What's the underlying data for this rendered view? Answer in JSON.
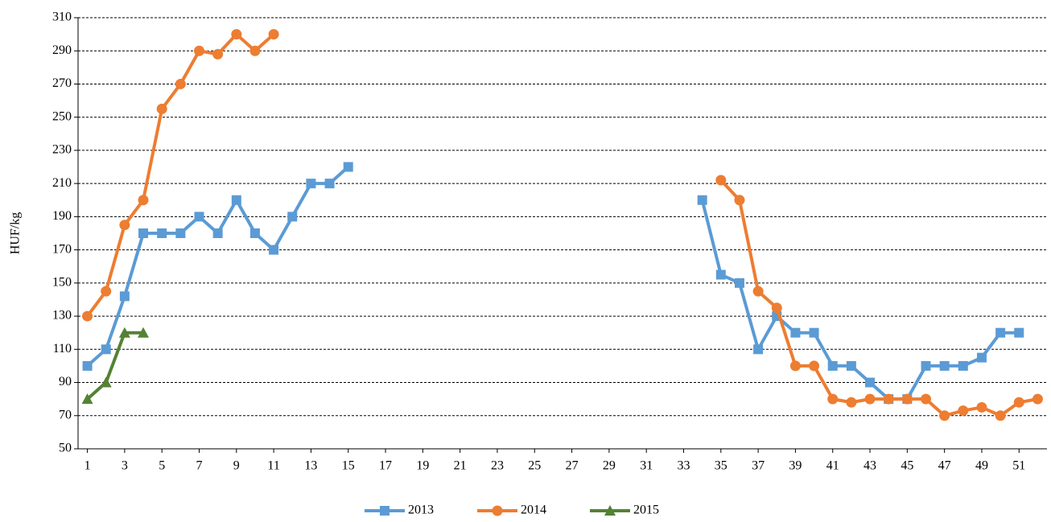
{
  "chart_data": {
    "type": "line",
    "y_label": "HUF/kg",
    "x": [
      1,
      2,
      3,
      4,
      5,
      6,
      7,
      8,
      9,
      10,
      11,
      12,
      13,
      14,
      15,
      16,
      17,
      18,
      19,
      20,
      21,
      22,
      23,
      24,
      25,
      26,
      27,
      28,
      29,
      30,
      31,
      32,
      33,
      34,
      35,
      36,
      37,
      38,
      39,
      40,
      41,
      42,
      43,
      44,
      45,
      46,
      47,
      48,
      49,
      50,
      51,
      52
    ],
    "xlim": [
      0.5,
      52.5
    ],
    "xticks": [
      1,
      3,
      5,
      7,
      9,
      11,
      13,
      15,
      17,
      19,
      21,
      23,
      25,
      27,
      29,
      31,
      33,
      35,
      37,
      39,
      41,
      43,
      45,
      47,
      49,
      51
    ],
    "ylim": [
      50,
      310
    ],
    "yticks": [
      50,
      70,
      90,
      110,
      130,
      150,
      170,
      190,
      210,
      230,
      250,
      270,
      290,
      310
    ],
    "grid": true,
    "legend": "bottom",
    "series": [
      {
        "name": "2013",
        "color": "#5b9bd5",
        "marker": "square",
        "values": [
          100,
          110,
          142,
          180,
          180,
          180,
          190,
          180,
          200,
          180,
          170,
          190,
          210,
          210,
          220,
          null,
          null,
          null,
          null,
          null,
          null,
          null,
          null,
          null,
          null,
          null,
          null,
          null,
          null,
          null,
          null,
          null,
          null,
          200,
          155,
          150,
          110,
          130,
          120,
          120,
          100,
          100,
          90,
          80,
          80,
          100,
          100,
          100,
          105,
          120,
          120,
          null
        ]
      },
      {
        "name": "2014",
        "color": "#ed7d31",
        "marker": "circle",
        "values": [
          130,
          145,
          185,
          200,
          255,
          270,
          290,
          288,
          300,
          290,
          300,
          null,
          null,
          null,
          null,
          null,
          null,
          null,
          null,
          null,
          null,
          null,
          null,
          null,
          null,
          null,
          null,
          null,
          null,
          null,
          null,
          null,
          null,
          null,
          212,
          200,
          145,
          135,
          100,
          100,
          80,
          78,
          80,
          80,
          80,
          80,
          70,
          73,
          75,
          70,
          78,
          80
        ]
      },
      {
        "name": "2015",
        "color": "#548235",
        "marker": "triangle",
        "values": [
          80,
          90,
          120,
          120,
          null,
          null,
          null,
          null,
          null,
          null,
          null,
          null,
          null,
          null,
          null,
          null,
          null,
          null,
          null,
          null,
          null,
          null,
          null,
          null,
          null,
          null,
          null,
          null,
          null,
          null,
          null,
          null,
          null,
          null,
          null,
          null,
          null,
          null,
          null,
          null,
          null,
          null,
          null,
          null,
          null,
          null,
          null,
          null,
          null,
          null,
          null,
          null
        ]
      }
    ]
  }
}
